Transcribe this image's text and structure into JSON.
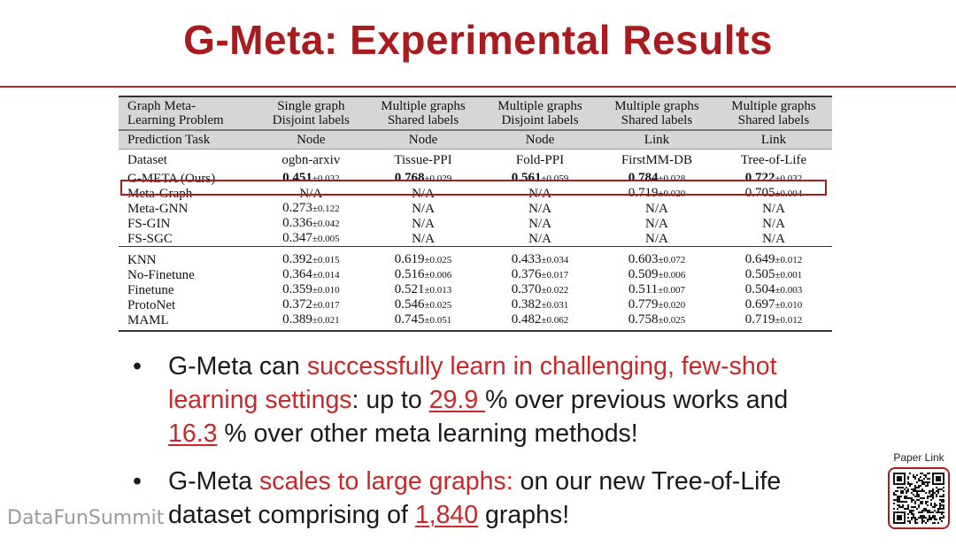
{
  "title": "G-Meta: Experimental Results",
  "table": {
    "header": {
      "problem": [
        "Graph Meta-",
        "Learning Problem"
      ],
      "cols": [
        [
          "Single graph",
          "Disjoint labels"
        ],
        [
          "Multiple graphs",
          "Shared labels"
        ],
        [
          "Multiple graphs",
          "Disjoint labels"
        ],
        [
          "Multiple graphs",
          "Shared labels"
        ],
        [
          "Multiple graphs",
          "Shared labels"
        ]
      ]
    },
    "task": {
      "label": "Prediction Task",
      "values": [
        "Node",
        "Node",
        "Node",
        "Link",
        "Link"
      ]
    },
    "dataset": {
      "label": "Dataset",
      "values": [
        "ogbn-arxiv",
        "Tissue-PPI",
        "Fold-PPI",
        "FirstMM-DB",
        "Tree-of-Life"
      ]
    },
    "ours": {
      "method": "G-META (Ours)",
      "cells": [
        {
          "m": "0.451",
          "s": "±0.032"
        },
        {
          "m": "0.768",
          "s": "±0.029"
        },
        {
          "m": "0.561",
          "s": "±0.059"
        },
        {
          "m": "0.784",
          "s": "±0.028"
        },
        {
          "m": "0.722",
          "s": "±0.032"
        }
      ]
    },
    "group1": [
      {
        "method": "Meta-Graph",
        "cells": [
          {
            "m": "N/A",
            "s": ""
          },
          {
            "m": "N/A",
            "s": ""
          },
          {
            "m": "N/A",
            "s": ""
          },
          {
            "m": "0.719",
            "s": "±0.020"
          },
          {
            "m": "0.705",
            "s": "±0.004"
          }
        ]
      },
      {
        "method": "Meta-GNN",
        "cells": [
          {
            "m": "0.273",
            "s": "±0.122"
          },
          {
            "m": "N/A",
            "s": ""
          },
          {
            "m": "N/A",
            "s": ""
          },
          {
            "m": "N/A",
            "s": ""
          },
          {
            "m": "N/A",
            "s": ""
          }
        ]
      },
      {
        "method": "FS-GIN",
        "cells": [
          {
            "m": "0.336",
            "s": "±0.042"
          },
          {
            "m": "N/A",
            "s": ""
          },
          {
            "m": "N/A",
            "s": ""
          },
          {
            "m": "N/A",
            "s": ""
          },
          {
            "m": "N/A",
            "s": ""
          }
        ]
      },
      {
        "method": "FS-SGC",
        "cells": [
          {
            "m": "0.347",
            "s": "±0.005"
          },
          {
            "m": "N/A",
            "s": ""
          },
          {
            "m": "N/A",
            "s": ""
          },
          {
            "m": "N/A",
            "s": ""
          },
          {
            "m": "N/A",
            "s": ""
          }
        ]
      }
    ],
    "group2": [
      {
        "method": "KNN",
        "cells": [
          {
            "m": "0.392",
            "s": "±0.015"
          },
          {
            "m": "0.619",
            "s": "±0.025"
          },
          {
            "m": "0.433",
            "s": "±0.034"
          },
          {
            "m": "0.603",
            "s": "±0.072"
          },
          {
            "m": "0.649",
            "s": "±0.012"
          }
        ]
      },
      {
        "method": "No-Finetune",
        "cells": [
          {
            "m": "0.364",
            "s": "±0.014"
          },
          {
            "m": "0.516",
            "s": "±0.006"
          },
          {
            "m": "0.376",
            "s": "±0.017"
          },
          {
            "m": "0.509",
            "s": "±0.006"
          },
          {
            "m": "0.505",
            "s": "±0.001"
          }
        ]
      },
      {
        "method": "Finetune",
        "cells": [
          {
            "m": "0.359",
            "s": "±0.010"
          },
          {
            "m": "0.521",
            "s": "±0.013"
          },
          {
            "m": "0.370",
            "s": "±0.022"
          },
          {
            "m": "0.511",
            "s": "±0.007"
          },
          {
            "m": "0.504",
            "s": "±0.003"
          }
        ]
      },
      {
        "method": "ProtoNet",
        "cells": [
          {
            "m": "0.372",
            "s": "±0.017"
          },
          {
            "m": "0.546",
            "s": "±0.025"
          },
          {
            "m": "0.382",
            "s": "±0.031"
          },
          {
            "m": "0.779",
            "s": "±0.020"
          },
          {
            "m": "0.697",
            "s": "±0.010"
          }
        ]
      },
      {
        "method": "MAML",
        "cells": [
          {
            "m": "0.389",
            "s": "±0.021"
          },
          {
            "m": "0.745",
            "s": "±0.051"
          },
          {
            "m": "0.482",
            "s": "±0.062"
          },
          {
            "m": "0.758",
            "s": "±0.025"
          },
          {
            "m": "0.719",
            "s": "±0.012"
          }
        ]
      }
    ]
  },
  "bullets": [
    {
      "glyph": "•",
      "parts": [
        {
          "t": "G-Meta can ",
          "c": "plain"
        },
        {
          "t": "successfully learn in challenging, few-shot learning settings",
          "c": "red"
        },
        {
          "t": ": up to ",
          "c": "plain"
        },
        {
          "t": "29.9 ",
          "c": "red-u"
        },
        {
          "t": "% over previous works and ",
          "c": "plain"
        },
        {
          "t": "16.3",
          "c": "red-u"
        },
        {
          "t": " % over other meta learning methods!",
          "c": "plain"
        }
      ]
    },
    {
      "glyph": "•",
      "parts": [
        {
          "t": "G-Meta ",
          "c": "plain"
        },
        {
          "t": "scales to large graphs:",
          "c": "red"
        },
        {
          "t": " on our new Tree-of-Life dataset comprising of ",
          "c": "plain"
        },
        {
          "t": "1,840",
          "c": "red-u"
        },
        {
          "t": " graphs!",
          "c": "plain"
        }
      ]
    }
  ],
  "watermark": "DataFunSummit",
  "paper_link_label": "Paper Link",
  "colors": {
    "accent": "#a81c1f",
    "highlight_text": "#c8282a",
    "table_header_bg": "#d6d6d6"
  },
  "icons": {
    "qr": "qr-code-icon"
  }
}
